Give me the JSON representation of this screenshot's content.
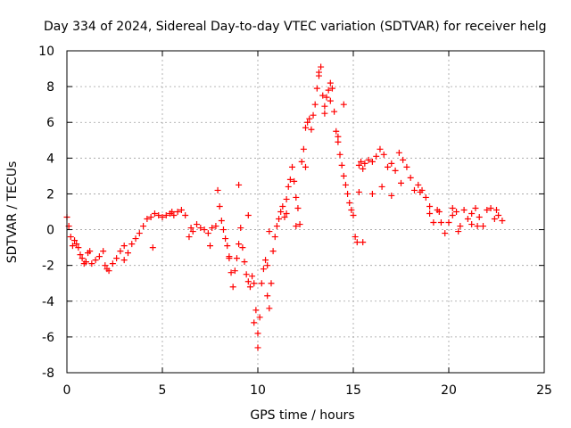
{
  "chart_data": {
    "type": "scatter",
    "title": "Day 334 of 2024, Sidereal Day-to-day VTEC variation (SDTVAR) for receiver helg",
    "xlabel": "GPS time / hours",
    "ylabel": "SDTVAR / TECUs",
    "xlim": [
      0,
      25
    ],
    "ylim": [
      -8,
      10
    ],
    "xticks": [
      0,
      5,
      10,
      15,
      20,
      25
    ],
    "yticks": [
      -8,
      -6,
      -4,
      -2,
      0,
      2,
      4,
      6,
      8,
      10
    ],
    "xtick_labels": [
      "0",
      "5",
      "10",
      "15",
      "20",
      "25"
    ],
    "ytick_labels": [
      "-8",
      "-6",
      "-4",
      "-2",
      "0",
      "2",
      "4",
      "6",
      "8",
      "10"
    ],
    "grid": true,
    "marker": "plus",
    "series": [
      {
        "name": "SDTVAR helg",
        "color": "#ff0000",
        "x": [
          0.0,
          0.1,
          0.2,
          0.3,
          0.4,
          0.5,
          0.6,
          0.7,
          0.8,
          0.9,
          1.0,
          1.1,
          1.2,
          1.3,
          1.5,
          1.7,
          1.9,
          2.0,
          2.1,
          2.2,
          2.4,
          2.6,
          2.8,
          3.0,
          3.2,
          3.4,
          3.6,
          3.8,
          4.0,
          4.2,
          4.4,
          4.6,
          4.8,
          5.0,
          5.2,
          5.4,
          5.6,
          5.8,
          6.0,
          6.2,
          6.4,
          6.6,
          6.8,
          7.0,
          7.2,
          7.4,
          7.6,
          7.8,
          7.9,
          8.0,
          8.1,
          8.2,
          8.3,
          8.4,
          8.5,
          8.6,
          8.7,
          8.8,
          8.9,
          9.0,
          9.1,
          9.2,
          9.3,
          9.4,
          9.5,
          9.6,
          9.7,
          9.8,
          9.9,
          10.0,
          10.1,
          10.2,
          10.3,
          10.4,
          10.5,
          10.6,
          10.7,
          10.8,
          10.9,
          11.0,
          11.1,
          11.2,
          11.3,
          11.4,
          11.5,
          11.6,
          11.7,
          11.8,
          11.9,
          12.0,
          12.1,
          12.2,
          12.3,
          12.4,
          12.5,
          12.6,
          12.7,
          12.8,
          12.9,
          13.0,
          13.1,
          13.2,
          13.3,
          13.4,
          13.5,
          13.6,
          13.7,
          13.8,
          13.9,
          14.0,
          14.1,
          14.2,
          14.3,
          14.4,
          14.5,
          14.6,
          14.7,
          14.8,
          14.9,
          15.0,
          15.1,
          15.2,
          15.3,
          15.4,
          15.5,
          15.6,
          15.8,
          16.0,
          16.2,
          16.4,
          16.6,
          16.8,
          17.0,
          17.2,
          17.4,
          17.6,
          17.8,
          18.0,
          18.2,
          18.4,
          18.6,
          18.8,
          19.0,
          19.2,
          19.4,
          19.6,
          19.8,
          20.0,
          20.2,
          20.4,
          20.6,
          20.8,
          21.0,
          21.2,
          21.4,
          21.6,
          21.8,
          22.0,
          22.2,
          22.4,
          22.6,
          22.8,
          5.5,
          6.5,
          7.5,
          8.5,
          9.5,
          10.5,
          12.5,
          13.5,
          14.5,
          15.5,
          16.5,
          17.5,
          18.5,
          19.5,
          20.5,
          21.5,
          22.5,
          1.0,
          3.0,
          4.5,
          11.5,
          13.2,
          13.8,
          16.0,
          17.0,
          19.0,
          20.2,
          21.2,
          9.0,
          9.8,
          10.0,
          10.6,
          12.0,
          14.2,
          15.3
        ],
        "y": [
          0.7,
          0.2,
          -0.4,
          -0.9,
          -0.6,
          -0.8,
          -1.0,
          -1.4,
          -1.6,
          -1.9,
          -1.8,
          -1.3,
          -1.2,
          -1.9,
          -1.7,
          -1.5,
          -1.2,
          -2.0,
          -2.2,
          -2.3,
          -1.9,
          -1.6,
          -1.2,
          -0.9,
          -1.3,
          -0.8,
          -0.5,
          -0.2,
          0.2,
          0.6,
          0.7,
          0.9,
          0.8,
          0.7,
          0.8,
          0.9,
          0.8,
          1.0,
          1.1,
          0.8,
          -0.4,
          -0.1,
          0.3,
          0.1,
          0.0,
          -0.2,
          0.1,
          0.2,
          2.2,
          1.3,
          0.5,
          0.0,
          -0.5,
          -0.9,
          -1.6,
          -2.4,
          -3.2,
          -2.3,
          -1.6,
          -0.8,
          0.1,
          -1.0,
          -1.8,
          -2.5,
          -2.9,
          -3.2,
          -2.6,
          -3.0,
          -4.5,
          -5.8,
          -4.9,
          -3.0,
          -2.2,
          -1.7,
          -3.7,
          -4.4,
          -3.0,
          -1.2,
          -0.4,
          0.2,
          0.6,
          1.0,
          1.3,
          0.7,
          1.7,
          2.4,
          2.8,
          3.5,
          2.7,
          1.8,
          1.2,
          0.3,
          3.8,
          4.5,
          5.7,
          6.0,
          6.2,
          5.6,
          6.4,
          7.0,
          7.9,
          8.6,
          9.1,
          7.5,
          6.9,
          7.4,
          7.8,
          8.2,
          7.9,
          6.6,
          5.5,
          4.9,
          4.2,
          3.6,
          3.0,
          2.5,
          2.0,
          1.5,
          1.1,
          0.8,
          -0.4,
          -0.7,
          3.6,
          3.8,
          3.4,
          3.7,
          3.9,
          3.8,
          4.1,
          4.5,
          4.2,
          3.5,
          3.7,
          3.3,
          4.3,
          3.9,
          3.5,
          2.9,
          2.2,
          2.5,
          2.2,
          1.8,
          0.9,
          0.4,
          1.1,
          0.4,
          -0.2,
          0.4,
          0.8,
          1.0,
          0.2,
          1.1,
          0.6,
          0.9,
          1.2,
          0.7,
          0.2,
          1.1,
          1.2,
          0.6,
          0.8,
          0.5,
          1.0,
          0.1,
          -0.9,
          -1.5,
          0.8,
          -2.0,
          3.5,
          6.5,
          7.0,
          -0.7,
          2.4,
          2.6,
          2.1,
          1.0,
          -0.1,
          0.2,
          1.1,
          -1.8,
          -1.7,
          -1.0,
          0.9,
          8.8,
          7.2,
          2.0,
          1.9,
          1.3,
          1.2,
          0.3,
          2.5,
          -5.2,
          -6.6,
          -0.1,
          0.2,
          5.2,
          2.1
        ]
      }
    ]
  }
}
